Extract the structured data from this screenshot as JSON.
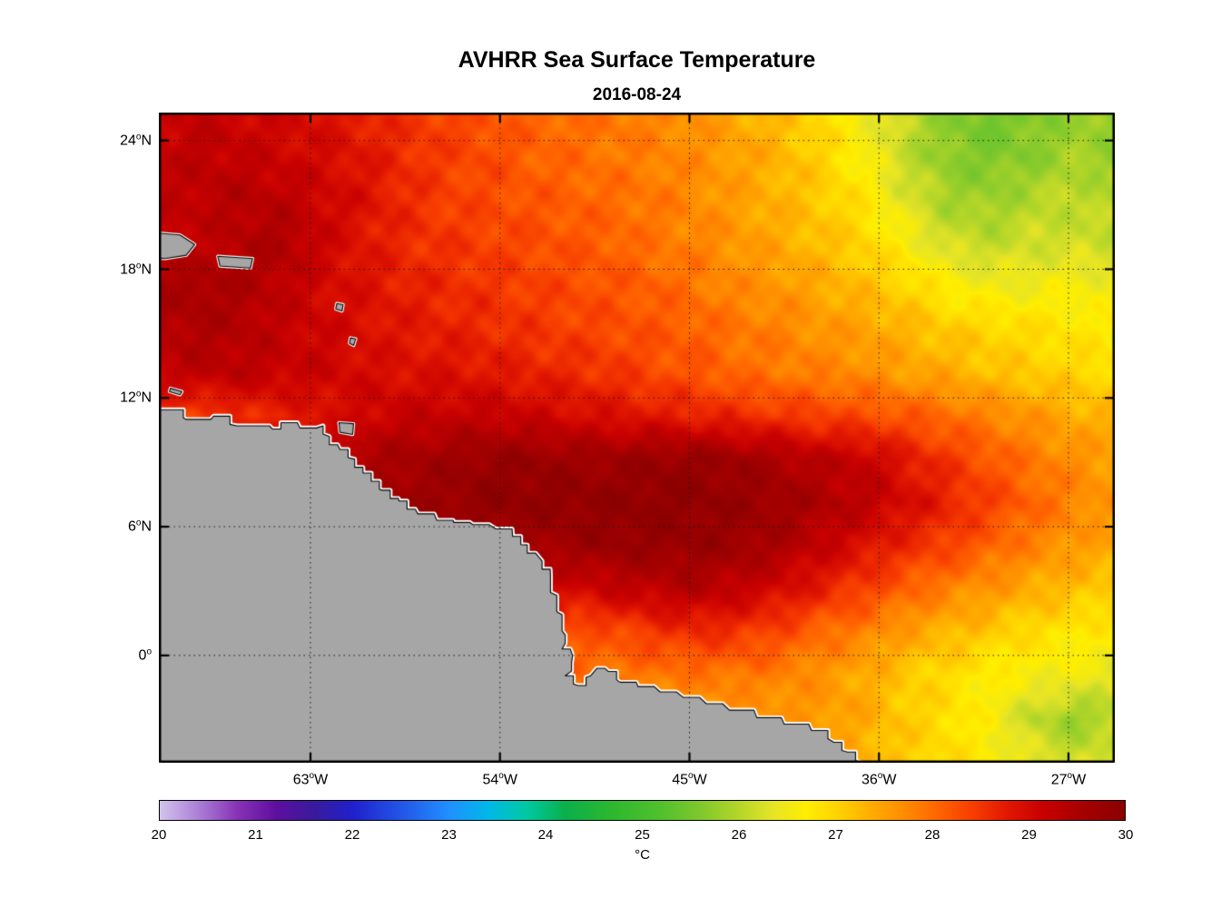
{
  "chart_data": {
    "type": "heatmap",
    "title": "AVHRR Sea Surface Temperature",
    "subtitle": "2016-08-24",
    "lon_min": -70.2,
    "lon_max": -24.8,
    "lat_min": -5.0,
    "lat_max": 25.3,
    "x_ticks": [
      {
        "value": -63,
        "label": "63",
        "deg": "o",
        "suffix": "W"
      },
      {
        "value": -54,
        "label": "54",
        "deg": "o",
        "suffix": "W"
      },
      {
        "value": -45,
        "label": "45",
        "deg": "o",
        "suffix": "W"
      },
      {
        "value": -36,
        "label": "36",
        "deg": "o",
        "suffix": "W"
      },
      {
        "value": -27,
        "label": "27",
        "deg": "o",
        "suffix": "W"
      }
    ],
    "y_ticks": [
      {
        "value": 24,
        "label": "24",
        "deg": "o",
        "suffix": "N"
      },
      {
        "value": 18,
        "label": "18",
        "deg": "o",
        "suffix": "N"
      },
      {
        "value": 12,
        "label": "12",
        "deg": "o",
        "suffix": "N"
      },
      {
        "value": 6,
        "label": "6",
        "deg": "o",
        "suffix": "N"
      },
      {
        "value": 0,
        "label": "0",
        "deg": "o",
        "suffix": ""
      }
    ],
    "grid": {
      "units": "degC",
      "values": [
        [
          29.1,
          29.2,
          29.1,
          29.0,
          28.9,
          28.7,
          28.5,
          28.4,
          28.2,
          28.1,
          28.0,
          27.9,
          27.8,
          27.6,
          27.4,
          27.2,
          26.9,
          26.5,
          26.1,
          25.7,
          25.5,
          25.6,
          25.8,
          25.7
        ],
        [
          29.2,
          29.3,
          29.2,
          29.1,
          29.0,
          28.8,
          28.6,
          28.4,
          28.3,
          28.1,
          28.0,
          27.9,
          27.8,
          27.7,
          27.5,
          27.3,
          27.0,
          26.6,
          26.1,
          25.7,
          25.6,
          25.7,
          25.9,
          25.8
        ],
        [
          29.2,
          29.3,
          29.4,
          29.3,
          29.1,
          28.9,
          28.6,
          28.4,
          28.3,
          28.2,
          28.1,
          28.0,
          27.9,
          27.7,
          27.5,
          27.3,
          27.1,
          26.8,
          26.3,
          25.9,
          25.8,
          26.0,
          26.1,
          26.0
        ],
        [
          29.3,
          29.2,
          29.4,
          29.5,
          29.1,
          28.8,
          28.6,
          28.5,
          28.4,
          28.3,
          28.2,
          28.1,
          27.9,
          27.8,
          27.6,
          27.4,
          27.2,
          27.0,
          26.6,
          26.2,
          26.1,
          26.2,
          26.2,
          26.1
        ],
        [
          29.5,
          29.6,
          29.5,
          29.3,
          29.0,
          28.9,
          28.7,
          28.6,
          28.5,
          28.4,
          28.3,
          28.2,
          28.1,
          27.9,
          27.7,
          27.6,
          27.4,
          27.2,
          27.0,
          26.7,
          26.5,
          26.5,
          26.6,
          26.5
        ],
        [
          29.4,
          29.5,
          29.4,
          29.2,
          29.1,
          28.9,
          28.8,
          28.7,
          28.6,
          28.5,
          28.4,
          28.3,
          28.2,
          28.1,
          27.9,
          27.8,
          27.6,
          27.5,
          27.3,
          27.1,
          27.0,
          26.9,
          26.8,
          26.7
        ],
        [
          29.2,
          29.3,
          29.3,
          29.2,
          29.1,
          29.0,
          28.9,
          28.9,
          28.8,
          28.7,
          28.6,
          28.5,
          28.3,
          28.2,
          28.0,
          27.9,
          27.8,
          27.7,
          27.5,
          27.4,
          27.2,
          27.1,
          27.0,
          26.9
        ],
        [
          28.5,
          28.4,
          28.6,
          28.7,
          28.9,
          29.1,
          29.2,
          29.2,
          29.2,
          29.1,
          29.0,
          28.9,
          28.8,
          28.7,
          28.6,
          28.5,
          28.4,
          28.3,
          28.2,
          28.0,
          27.8,
          27.6,
          27.4,
          27.3
        ],
        [
          29.3,
          29.3,
          29.3,
          29.4,
          29.4,
          29.5,
          29.6,
          29.7,
          29.8,
          29.8,
          29.7,
          29.7,
          29.8,
          29.8,
          29.7,
          29.5,
          29.3,
          29.2,
          28.8,
          28.5,
          28.2,
          27.9,
          27.7,
          27.5
        ],
        [
          29.5,
          29.5,
          29.5,
          29.5,
          29.5,
          29.6,
          29.7,
          29.8,
          29.9,
          29.9,
          29.9,
          29.9,
          29.9,
          29.9,
          29.8,
          29.7,
          29.5,
          29.3,
          29.0,
          28.7,
          28.4,
          28.1,
          27.8,
          27.6
        ],
        [
          29.5,
          29.5,
          29.5,
          29.5,
          29.5,
          29.5,
          29.6,
          29.6,
          29.7,
          29.6,
          29.7,
          29.8,
          29.8,
          29.8,
          29.7,
          29.5,
          29.2,
          28.9,
          28.6,
          28.4,
          28.1,
          27.8,
          27.6,
          27.4
        ],
        [
          29.2,
          29.2,
          29.2,
          29.2,
          29.2,
          29.2,
          29.2,
          29.2,
          29.2,
          29.1,
          29.0,
          29.2,
          29.3,
          29.4,
          29.2,
          29.0,
          28.7,
          28.4,
          28.1,
          27.8,
          27.6,
          27.4,
          27.2,
          27.1
        ],
        [
          28.8,
          28.8,
          28.8,
          28.8,
          28.8,
          28.8,
          28.8,
          28.8,
          28.8,
          28.7,
          28.2,
          28.3,
          28.5,
          28.6,
          28.5,
          28.3,
          28.0,
          27.8,
          27.5,
          27.3,
          27.1,
          26.9,
          26.8,
          26.7
        ],
        [
          28.3,
          28.3,
          28.3,
          28.3,
          28.3,
          28.3,
          28.3,
          28.3,
          28.3,
          28.2,
          28.0,
          27.9,
          27.9,
          27.9,
          27.9,
          27.8,
          27.6,
          27.4,
          27.1,
          26.9,
          26.7,
          26.6,
          26.5,
          26.4
        ],
        [
          27.8,
          27.8,
          27.8,
          27.8,
          27.8,
          27.8,
          27.8,
          27.8,
          27.8,
          27.8,
          27.7,
          27.7,
          27.6,
          27.5,
          27.5,
          27.6,
          27.6,
          27.4,
          27.1,
          26.9,
          26.6,
          26.1,
          25.8,
          26.0
        ],
        [
          27.6,
          27.6,
          27.6,
          27.6,
          27.6,
          27.6,
          27.6,
          27.6,
          27.6,
          27.6,
          27.6,
          27.5,
          27.5,
          27.4,
          27.4,
          27.5,
          27.4,
          27.3,
          27.1,
          26.9,
          26.7,
          26.4,
          26.2,
          26.3
        ]
      ]
    },
    "colormap": [
      [
        20.0,
        "#d2c4ec"
      ],
      [
        20.4,
        "#ab7fd6"
      ],
      [
        20.8,
        "#8733b5"
      ],
      [
        21.2,
        "#5e0f9e"
      ],
      [
        21.6,
        "#3a1a9c"
      ],
      [
        22.0,
        "#2020cc"
      ],
      [
        22.5,
        "#2355e8"
      ],
      [
        23.0,
        "#2090ff"
      ],
      [
        23.4,
        "#00b8e8"
      ],
      [
        23.8,
        "#00c9a3"
      ],
      [
        24.2,
        "#0ab04b"
      ],
      [
        24.7,
        "#2eb82e"
      ],
      [
        25.2,
        "#52c02e"
      ],
      [
        25.6,
        "#7ec82c"
      ],
      [
        26.0,
        "#b4d629"
      ],
      [
        26.35,
        "#e6e426"
      ],
      [
        26.7,
        "#ffee00"
      ],
      [
        27.05,
        "#ffd000"
      ],
      [
        27.4,
        "#ffaa00"
      ],
      [
        27.75,
        "#ff8800"
      ],
      [
        28.1,
        "#ff6000"
      ],
      [
        28.45,
        "#f63a00"
      ],
      [
        28.8,
        "#e01600"
      ],
      [
        29.15,
        "#c80000"
      ],
      [
        29.5,
        "#ab0000"
      ],
      [
        30.0,
        "#8a0000"
      ]
    ],
    "colorbar": {
      "min": 20,
      "max": 30,
      "ticks": [
        20,
        21,
        22,
        23,
        24,
        25,
        26,
        27,
        28,
        29,
        30
      ],
      "unit": "°C"
    },
    "land_color": "#a6a6a6",
    "coast_halo_color": "#ffffff",
    "frame_color": "#000000",
    "grid_line_color": "#1a1a1a",
    "land": {
      "mainland": [
        [
          -71.2,
          11.5
        ],
        [
          -70.2,
          11.45
        ],
        [
          -68.9,
          11.0
        ],
        [
          -67.6,
          11.15
        ],
        [
          -66.5,
          10.7
        ],
        [
          -64.8,
          10.55
        ],
        [
          -64.4,
          10.85
        ],
        [
          -63.5,
          10.6
        ],
        [
          -62.4,
          10.7
        ],
        [
          -62.1,
          10.2
        ],
        [
          -61.6,
          9.6
        ],
        [
          -60.9,
          9.15
        ],
        [
          -60.5,
          8.5
        ],
        [
          -59.6,
          7.7
        ],
        [
          -58.8,
          7.2
        ],
        [
          -57.9,
          6.6
        ],
        [
          -57.0,
          6.3
        ],
        [
          -56.2,
          6.2
        ],
        [
          -55.3,
          6.1
        ],
        [
          -54.2,
          5.9
        ],
        [
          -53.4,
          5.55
        ],
        [
          -52.7,
          5.15
        ],
        [
          -52.0,
          4.4
        ],
        [
          -51.6,
          3.7
        ],
        [
          -51.3,
          2.8
        ],
        [
          -51.05,
          1.9
        ],
        [
          -50.9,
          0.95
        ],
        [
          -51.05,
          0.3
        ],
        [
          -50.55,
          0.0
        ],
        [
          -50.6,
          -0.35
        ],
        [
          -50.9,
          -0.95
        ],
        [
          -50.3,
          -1.4
        ],
        [
          -49.7,
          -0.95
        ],
        [
          -49.4,
          -0.6
        ],
        [
          -48.85,
          -0.75
        ],
        [
          -48.3,
          -1.25
        ],
        [
          -47.45,
          -1.45
        ],
        [
          -46.4,
          -1.7
        ],
        [
          -45.3,
          -1.95
        ],
        [
          -44.2,
          -2.25
        ],
        [
          -43.1,
          -2.55
        ],
        [
          -41.8,
          -2.9
        ],
        [
          -40.5,
          -3.2
        ],
        [
          -39.2,
          -3.5
        ],
        [
          -38.15,
          -4.05
        ],
        [
          -37.5,
          -4.5
        ],
        [
          -36.9,
          -5.0
        ],
        [
          -36.6,
          -6.0
        ],
        [
          -71.2,
          -6.0
        ]
      ],
      "islands": [
        [
          [
            -71.0,
            19.75
          ],
          [
            -69.2,
            19.6
          ],
          [
            -68.5,
            19.15
          ],
          [
            -68.9,
            18.65
          ],
          [
            -69.9,
            18.5
          ],
          [
            -71.0,
            18.55
          ]
        ],
        [
          [
            -67.4,
            18.6
          ],
          [
            -65.75,
            18.5
          ],
          [
            -65.85,
            18.05
          ],
          [
            -67.3,
            18.15
          ]
        ],
        [
          [
            -61.75,
            16.4
          ],
          [
            -61.45,
            16.35
          ],
          [
            -61.5,
            16.05
          ],
          [
            -61.8,
            16.15
          ]
        ],
        [
          [
            -61.1,
            14.8
          ],
          [
            -60.85,
            14.75
          ],
          [
            -60.95,
            14.45
          ],
          [
            -61.15,
            14.55
          ]
        ],
        [
          [
            -69.65,
            12.45
          ],
          [
            -69.1,
            12.3
          ],
          [
            -69.2,
            12.15
          ],
          [
            -69.7,
            12.3
          ]
        ],
        [
          [
            -61.65,
            10.85
          ],
          [
            -60.95,
            10.8
          ],
          [
            -61.0,
            10.3
          ],
          [
            -61.6,
            10.4
          ]
        ]
      ]
    }
  }
}
